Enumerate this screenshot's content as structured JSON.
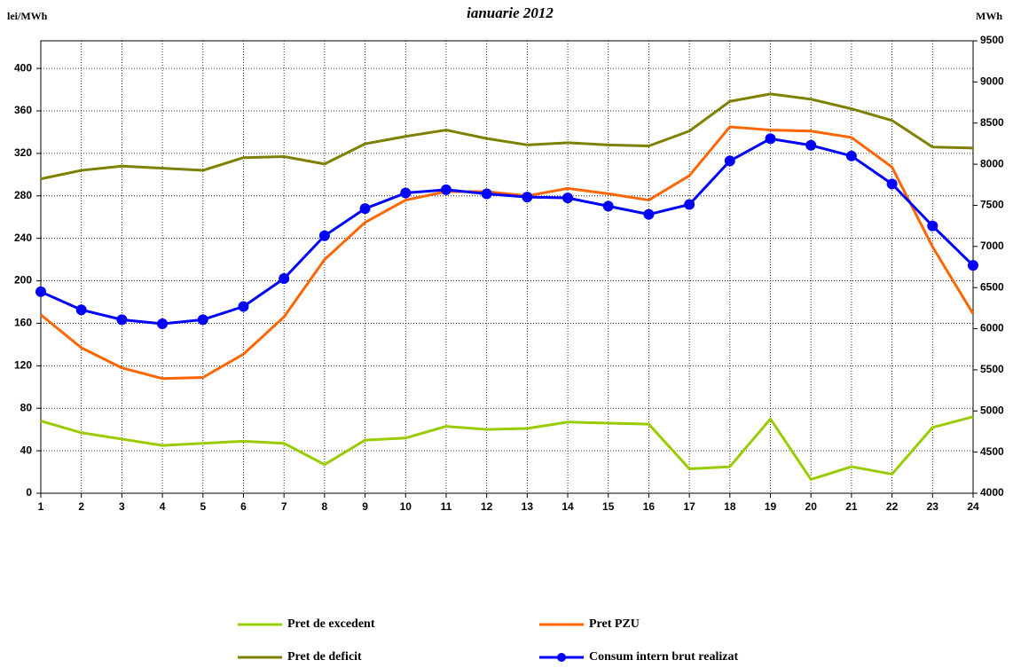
{
  "chart_data": {
    "type": "line",
    "title": "ianuarie 2012",
    "y_label": "lei/MWh",
    "y2_label": "MWh",
    "x": [
      1,
      2,
      3,
      4,
      5,
      6,
      7,
      8,
      9,
      10,
      11,
      12,
      13,
      14,
      15,
      16,
      17,
      18,
      19,
      20,
      21,
      22,
      23,
      24
    ],
    "xlim": [
      1,
      24
    ],
    "xticks": [
      1,
      2,
      3,
      4,
      5,
      6,
      7,
      8,
      9,
      10,
      11,
      12,
      13,
      14,
      15,
      16,
      17,
      18,
      19,
      20,
      21,
      22,
      23,
      24
    ],
    "ylim": [
      0,
      426
    ],
    "yticks": [
      0,
      40,
      80,
      120,
      160,
      200,
      240,
      280,
      320,
      360,
      400
    ],
    "y2lim": [
      4000,
      9500
    ],
    "y2ticks": [
      4000,
      4500,
      5000,
      5500,
      6000,
      6500,
      7000,
      7500,
      8000,
      8500,
      9000,
      9500
    ],
    "grid": true,
    "legend": "bottom",
    "series": [
      {
        "name": "Pret de excedent",
        "color": "#99cc00",
        "values": [
          68,
          57,
          51,
          45,
          47,
          49,
          47,
          27,
          50,
          52,
          63,
          60,
          61,
          67,
          66,
          65,
          23,
          25,
          70,
          13,
          25,
          18,
          62,
          72
        ]
      },
      {
        "name": "Pret PZU",
        "color": "#ff6600",
        "values": [
          168,
          137,
          118,
          108,
          109,
          131,
          166,
          220,
          255,
          276,
          284,
          284,
          280,
          287,
          282,
          276,
          299,
          345,
          342,
          341,
          335,
          307,
          232,
          169
        ]
      },
      {
        "name": "Pret de deficit",
        "color": "#808000",
        "values": [
          296,
          304,
          308,
          306,
          304,
          316,
          317,
          310,
          329,
          336,
          342,
          334,
          328,
          330,
          328,
          327,
          341,
          369,
          376,
          371,
          362,
          351,
          326,
          325
        ]
      },
      {
        "name": "Consum intern brut realizat",
        "color": "#0000ff",
        "axis": "y2",
        "markers": true,
        "values": [
          6450,
          6230,
          6110,
          6060,
          6110,
          6270,
          6610,
          7130,
          7460,
          7650,
          7690,
          7640,
          7600,
          7590,
          7490,
          7390,
          7510,
          8040,
          8310,
          8230,
          8100,
          7760,
          7250,
          6770
        ]
      }
    ]
  }
}
